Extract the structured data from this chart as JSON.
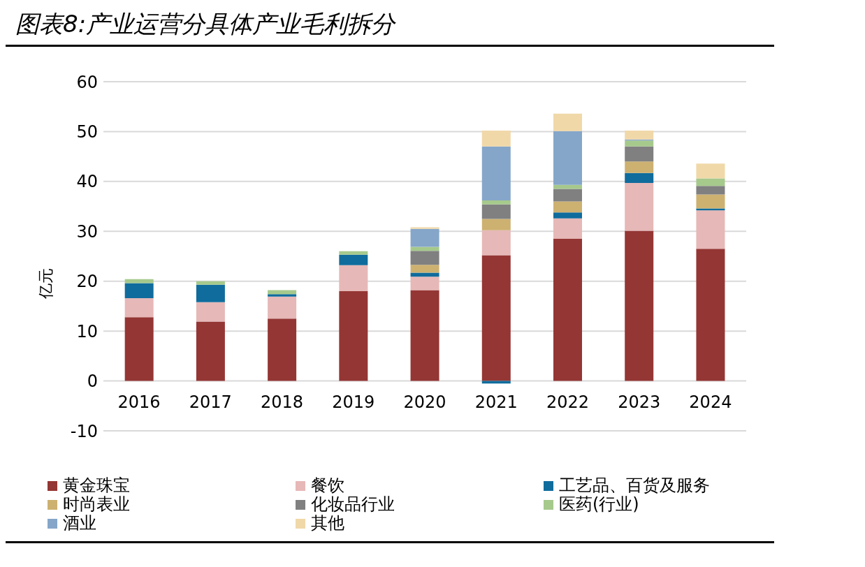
{
  "chart_data": {
    "type": "bar",
    "title": "图表8:产业运营分具体产业毛利拆分",
    "ylabel": "亿元",
    "stacked": true,
    "grid": "y",
    "legend": "bottom",
    "categories": [
      "2016",
      "2017",
      "2018",
      "2019",
      "2020",
      "2021",
      "2022",
      "2023",
      "2024"
    ],
    "ylim": [
      -10,
      60
    ],
    "yticks": [
      -10,
      0,
      10,
      20,
      30,
      40,
      50,
      60
    ],
    "series": [
      {
        "name": "黄金珠宝",
        "color": "#943634",
        "values": [
          12.8,
          11.9,
          12.5,
          18.0,
          18.2,
          25.2,
          28.5,
          30.1,
          26.5
        ]
      },
      {
        "name": "餐饮",
        "color": "#e6b8b7",
        "values": [
          3.8,
          3.9,
          4.4,
          5.2,
          2.7,
          5.0,
          4.1,
          9.6,
          7.7
        ]
      },
      {
        "name": "工艺品、百货及服务",
        "color": "#106c9c",
        "values": [
          3.0,
          3.5,
          0.5,
          2.1,
          0.8,
          -0.5,
          1.2,
          2.0,
          0.4
        ]
      },
      {
        "name": "时尚表业",
        "color": "#cdb170",
        "values": [
          null,
          null,
          null,
          null,
          1.6,
          2.3,
          2.2,
          2.3,
          2.8
        ]
      },
      {
        "name": "化妆品行业",
        "color": "#808080",
        "values": [
          null,
          null,
          null,
          null,
          2.8,
          2.9,
          2.5,
          3.0,
          1.7
        ]
      },
      {
        "name": "医药(行业)",
        "color": "#a6c98c",
        "values": [
          0.8,
          0.7,
          0.8,
          0.7,
          0.8,
          0.8,
          0.8,
          1.2,
          1.5
        ]
      },
      {
        "name": "酒业",
        "color": "#85a6c9",
        "values": [
          null,
          null,
          null,
          null,
          3.6,
          10.8,
          10.8,
          0.2,
          null
        ]
      },
      {
        "name": "其他",
        "color": "#f0d8a8",
        "values": [
          null,
          null,
          null,
          null,
          0.3,
          3.2,
          3.5,
          1.8,
          3.0
        ]
      }
    ]
  }
}
